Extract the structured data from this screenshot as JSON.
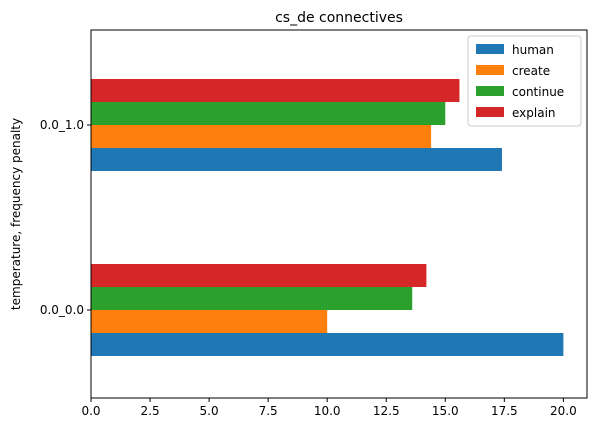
{
  "chart_data": {
    "type": "bar",
    "orientation": "horizontal",
    "title": "cs_de connectives",
    "xlabel": "",
    "ylabel": "temperature, frequency penalty",
    "categories": [
      "0.0_0.0",
      "0.0_1.0"
    ],
    "series": [
      {
        "name": "human",
        "color": "#1f77b4",
        "values": [
          20.0,
          17.4
        ]
      },
      {
        "name": "create",
        "color": "#ff7f0e",
        "values": [
          10.0,
          14.4
        ]
      },
      {
        "name": "continue",
        "color": "#2ca02c",
        "values": [
          13.6,
          15.0
        ]
      },
      {
        "name": "explain",
        "color": "#d62728",
        "values": [
          14.2,
          15.6
        ]
      }
    ],
    "xlim": [
      0,
      21
    ],
    "xticks": [
      0.0,
      2.5,
      5.0,
      7.5,
      10.0,
      12.5,
      15.0,
      17.5,
      20.0
    ],
    "xtick_labels": [
      "0.0",
      "2.5",
      "5.0",
      "7.5",
      "10.0",
      "12.5",
      "15.0",
      "17.5",
      "20.0"
    ],
    "grid": false,
    "legend_position": "top-right"
  }
}
